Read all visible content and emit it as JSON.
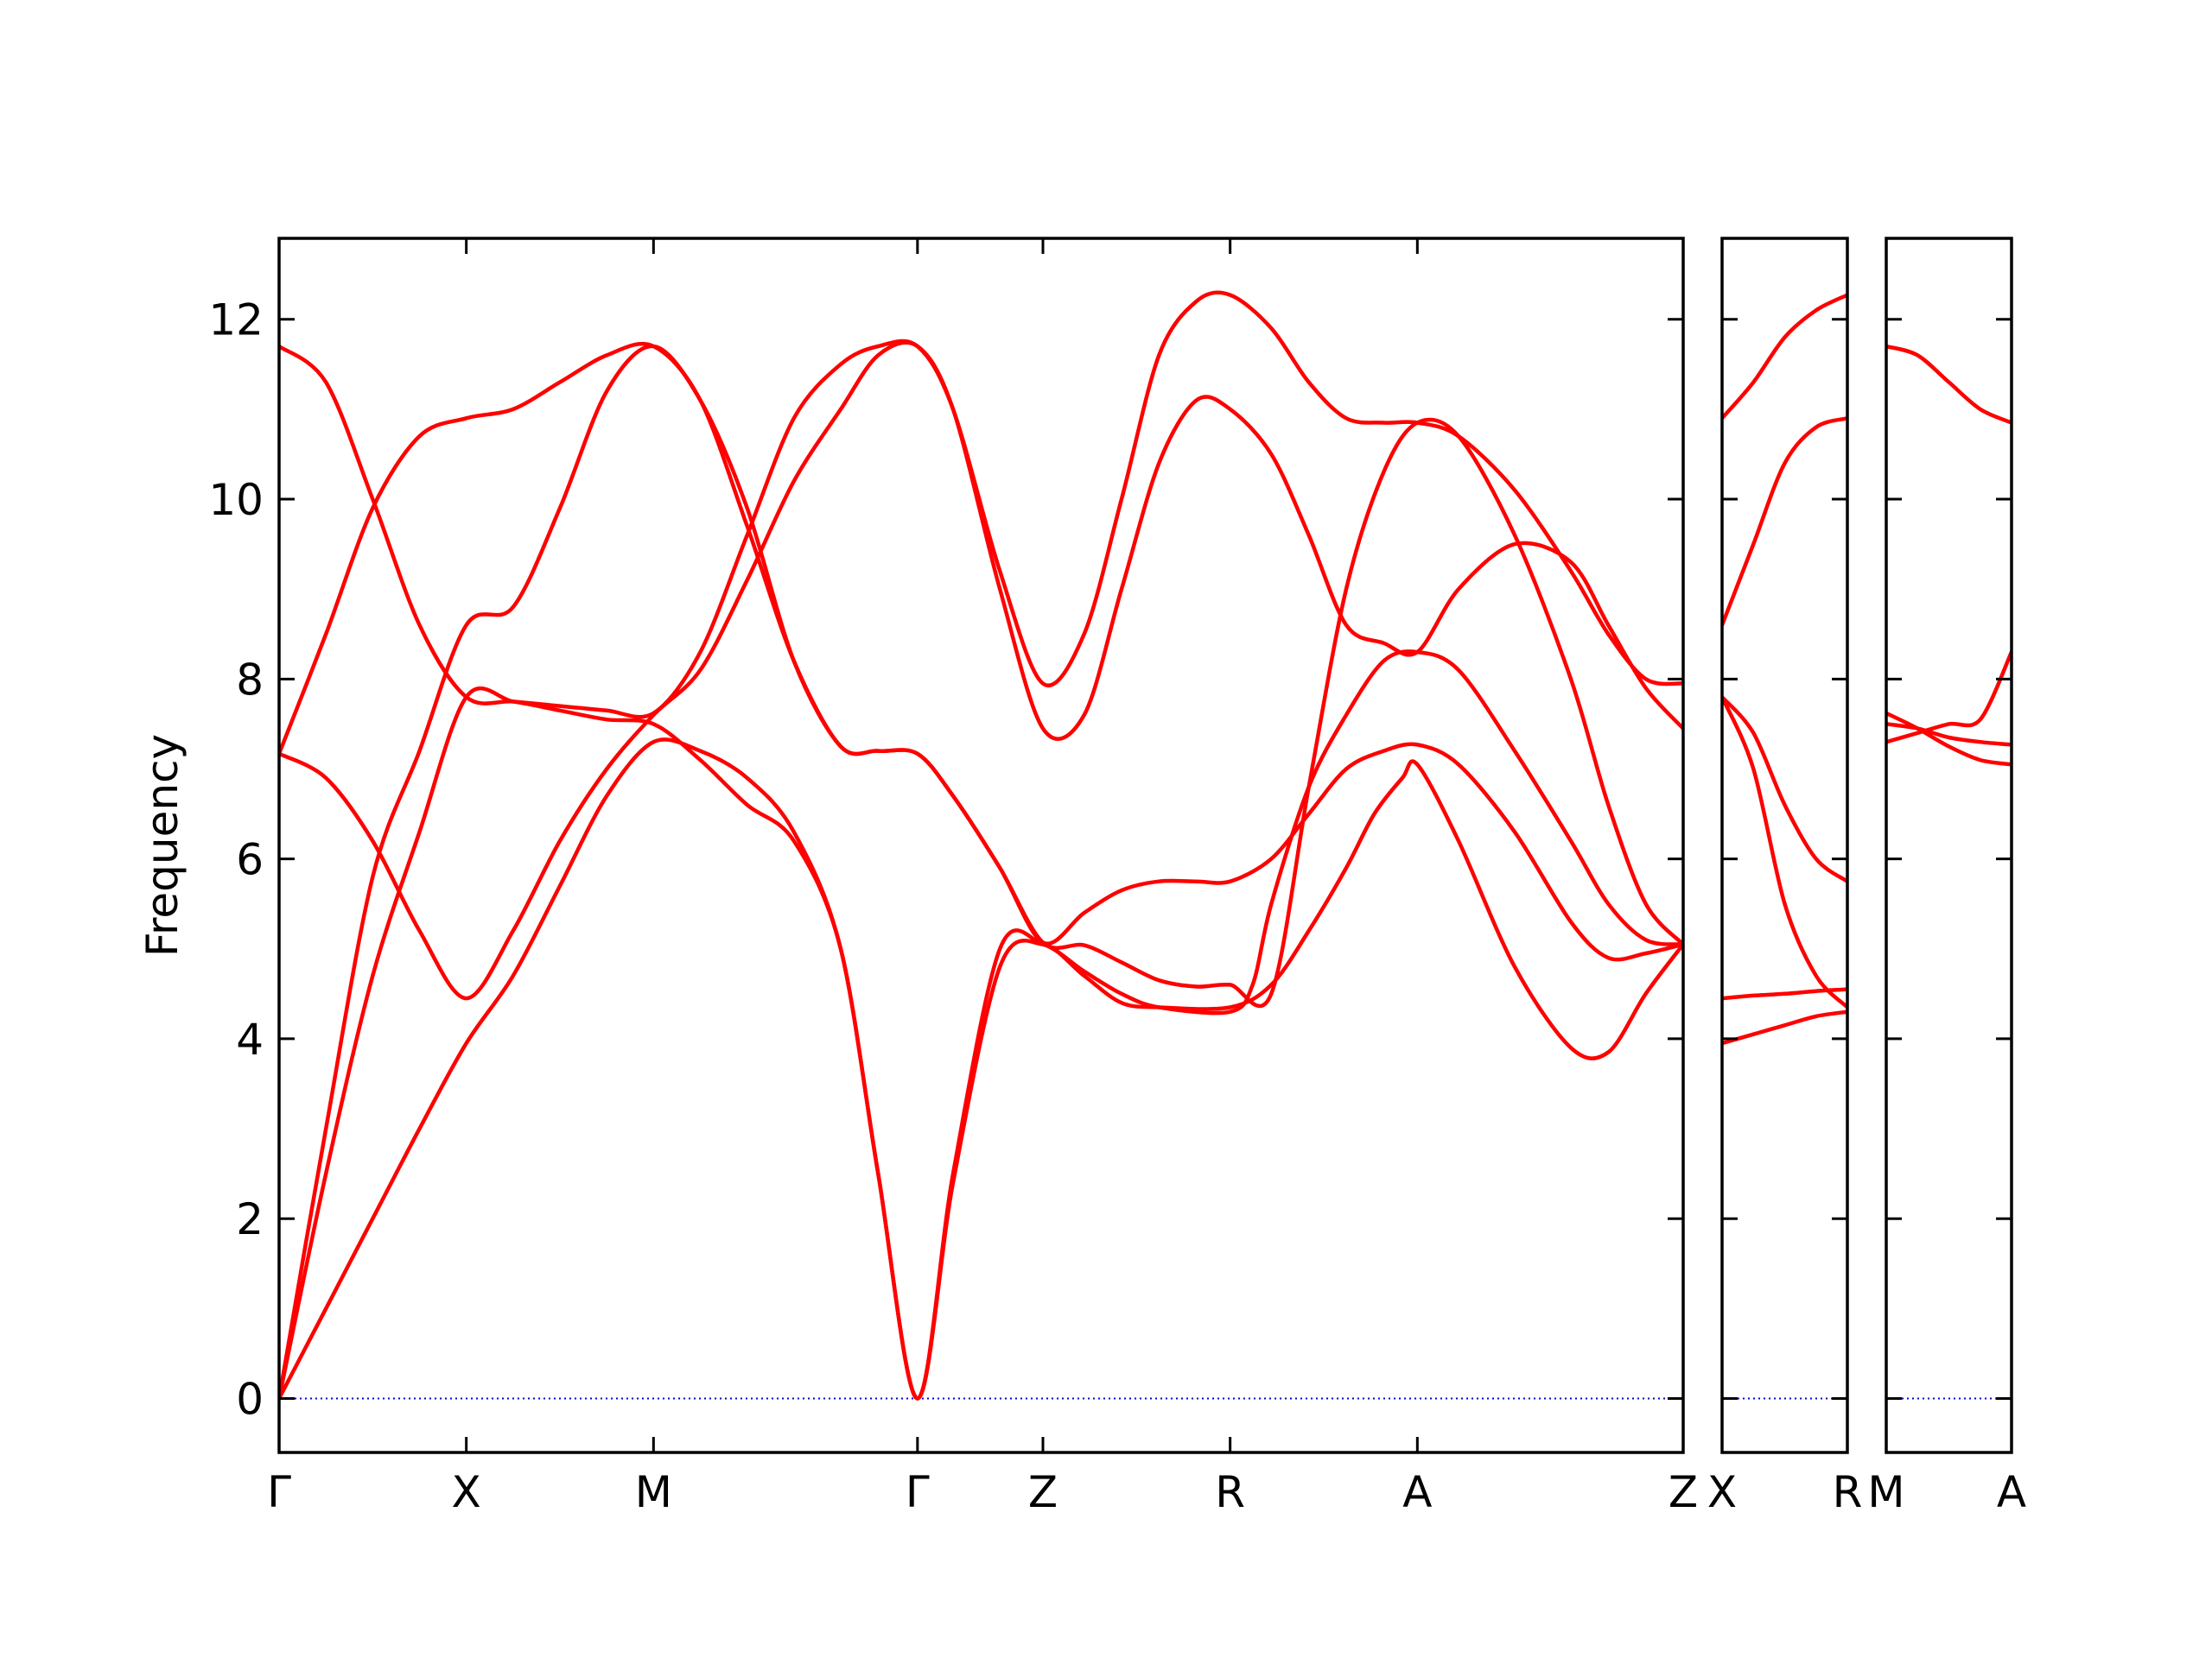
{
  "chart_data": {
    "type": "line",
    "title": "",
    "xlabel": "",
    "ylabel": "Frequency",
    "ylim": [
      -0.6,
      12.9
    ],
    "yticks": [
      0,
      2,
      4,
      6,
      8,
      10,
      12
    ],
    "grid": false,
    "legend": "none",
    "colors": {
      "band": "#ff0000",
      "zero_line": "#0000cc",
      "axes": "#000000"
    },
    "segments": [
      {
        "path": [
          "Γ",
          "X",
          "M",
          "Γ",
          "Z",
          "R",
          "A",
          "Z"
        ],
        "x": [
          0,
          1,
          2,
          3.41,
          4.08,
          5.08,
          6.08,
          7.5
        ],
        "bands": [
          {
            "x": [
              0,
              0.25,
              0.5,
              0.75,
              1,
              1.25,
              1.5,
              1.75,
              2,
              2.25,
              2.5,
              2.75,
              3,
              3.2,
              3.41,
              3.6,
              3.85,
              4.08,
              4.3,
              4.5,
              4.7,
              5.08,
              5.3,
              5.5,
              5.7,
              5.85,
              6.0,
              6.08,
              6.3,
              6.6,
              6.9,
              7.1,
              7.3,
              7.5
            ],
            "y": [
              0,
              1.0,
              2.0,
              3.0,
              3.95,
              4.7,
              5.7,
              6.7,
              7.3,
              7.2,
              6.9,
              6.3,
              5.0,
              2.5,
              0,
              2.4,
              4.8,
              5.05,
              4.7,
              4.4,
              4.35,
              4.35,
              4.6,
              5.2,
              5.9,
              6.5,
              6.9,
              7.05,
              6.2,
              4.8,
              3.9,
              3.85,
              4.5,
              5.05
            ]
          },
          {
            "x": [
              0,
              0.25,
              0.5,
              0.75,
              1,
              1.25,
              1.5,
              1.75,
              2,
              2.25,
              2.5,
              2.75,
              3,
              3.2,
              3.41,
              3.6,
              3.85,
              4.08,
              4.3,
              4.5,
              4.7,
              5.08,
              5.2,
              5.3,
              5.5,
              5.7,
              5.9,
              6.08,
              6.3,
              6.6,
              6.9,
              7.1,
              7.3,
              7.5
            ],
            "y": [
              0,
              2.5,
              4.7,
              6.3,
              7.8,
              7.75,
              7.65,
              7.55,
              7.5,
              7.1,
              6.6,
              6.2,
              5.0,
              2.5,
              0,
              2.5,
              5.0,
              5.05,
              4.75,
              4.5,
              4.35,
              4.3,
              4.6,
              5.5,
              6.8,
              7.6,
              8.2,
              8.3,
              8.1,
              7.2,
              6.2,
              5.5,
              5.1,
              5.05
            ]
          },
          {
            "x": [
              0,
              0.25,
              0.5,
              0.75,
              1,
              1.25,
              1.5,
              1.75,
              2,
              2.25,
              2.5,
              2.75,
              3,
              3.2,
              3.41,
              3.6,
              3.85,
              4.08,
              4.3,
              4.5,
              4.7,
              4.9,
              5.08,
              5.3,
              5.5,
              5.7,
              5.9,
              6.08,
              6.3,
              6.6,
              6.9,
              7.1,
              7.3,
              7.5
            ],
            "y": [
              0,
              3.0,
              5.8,
              7.2,
              8.6,
              8.8,
              9.9,
              11.2,
              11.7,
              11.1,
              9.9,
              8.2,
              7.25,
              7.2,
              7.17,
              6.7,
              5.9,
              5.07,
              5.04,
              4.85,
              4.65,
              4.58,
              4.6,
              4.5,
              6.8,
              9.0,
              10.3,
              10.85,
              10.7,
              9.6,
              8.0,
              6.6,
              5.5,
              5.05
            ]
          },
          {
            "x": [
              0,
              0.25,
              0.5,
              0.75,
              1,
              1.25,
              1.5,
              1.75,
              2,
              2.25,
              2.5,
              2.75,
              3,
              3.2,
              3.41,
              3.6,
              3.85,
              4.08,
              4.3,
              4.5,
              4.7,
              4.9,
              5.08,
              5.3,
              5.5,
              5.7,
              5.9,
              6.08,
              6.3,
              6.6,
              6.9,
              7.1,
              7.3,
              7.5
            ],
            "y": [
              7.17,
              6.9,
              6.2,
              5.2,
              4.45,
              5.2,
              6.2,
              7.0,
              7.6,
              8.1,
              9.1,
              10.2,
              11.0,
              11.6,
              11.7,
              11.0,
              9.0,
              7.45,
              7.6,
              9.0,
              10.4,
              11.1,
              11.0,
              10.5,
              9.6,
              8.6,
              8.4,
              8.3,
              9.0,
              9.5,
              9.3,
              8.6,
              7.9,
              7.45
            ]
          },
          {
            "x": [
              0,
              0.25,
              0.5,
              0.75,
              1,
              1.25,
              1.5,
              1.75,
              2,
              2.25,
              2.5,
              2.75,
              3,
              3.2,
              3.41,
              3.6,
              3.85,
              4.08,
              4.3,
              4.5,
              4.7,
              4.9,
              5.08,
              5.3,
              5.5,
              5.7,
              5.9,
              6.08,
              6.3,
              6.6,
              6.9,
              7.1,
              7.3,
              7.5
            ],
            "y": [
              7.17,
              8.5,
              9.9,
              10.7,
              10.9,
              11.0,
              11.3,
              11.6,
              11.7,
              11.1,
              9.7,
              8.2,
              7.25,
              7.2,
              7.17,
              6.7,
              5.9,
              5.07,
              5.4,
              5.65,
              5.75,
              5.75,
              5.75,
              6.0,
              6.5,
              7.0,
              7.2,
              7.27,
              7.05,
              6.3,
              5.3,
              4.9,
              4.95,
              5.05
            ]
          },
          {
            "x": [
              0,
              0.25,
              0.5,
              0.75,
              1,
              1.25,
              1.5,
              1.75,
              2,
              2.25,
              2.5,
              2.75,
              3,
              3.2,
              3.41,
              3.6,
              3.85,
              4.08,
              4.3,
              4.5,
              4.7,
              4.9,
              5.08,
              5.3,
              5.5,
              5.7,
              5.9,
              6.08,
              6.3,
              6.6,
              6.9,
              7.1,
              7.3,
              7.5
            ],
            "y": [
              11.7,
              11.3,
              10.0,
              8.6,
              7.8,
              7.75,
              7.7,
              7.65,
              7.62,
              8.3,
              9.6,
              10.9,
              11.5,
              11.7,
              11.7,
              11.0,
              9.2,
              7.95,
              8.5,
              10.0,
              11.6,
              12.2,
              12.27,
              11.9,
              11.3,
              10.9,
              10.85,
              10.85,
              10.7,
              10.1,
              9.2,
              8.5,
              8.0,
              7.95
            ]
          }
        ]
      },
      {
        "path": [
          "X",
          "R"
        ],
        "x": [
          0,
          1
        ],
        "bands": [
          {
            "x": [
              0,
              0.25,
              0.5,
              0.75,
              1
            ],
            "y": [
              3.95,
              4.05,
              4.15,
              4.25,
              4.3
            ]
          },
          {
            "x": [
              0,
              0.25,
              0.5,
              0.75,
              1
            ],
            "y": [
              4.45,
              4.48,
              4.5,
              4.53,
              4.55
            ]
          },
          {
            "x": [
              0,
              0.25,
              0.5,
              0.75,
              1
            ],
            "y": [
              7.8,
              7.0,
              5.5,
              4.7,
              4.35
            ]
          },
          {
            "x": [
              0,
              0.25,
              0.5,
              0.75,
              1
            ],
            "y": [
              7.8,
              7.4,
              6.6,
              6.0,
              5.75
            ]
          },
          {
            "x": [
              0,
              0.25,
              0.5,
              0.75,
              1
            ],
            "y": [
              8.6,
              9.5,
              10.4,
              10.8,
              10.9
            ]
          },
          {
            "x": [
              0,
              0.25,
              0.5,
              0.75,
              1
            ],
            "y": [
              10.9,
              11.3,
              11.8,
              12.1,
              12.27
            ]
          }
        ]
      },
      {
        "path": [
          "M",
          "A"
        ],
        "x": [
          0,
          1
        ],
        "bands": [
          {
            "x": [
              0,
              0.25,
              0.5,
              0.75,
              1
            ],
            "y": [
              7.3,
              7.4,
              7.5,
              7.55,
              8.3
            ]
          },
          {
            "x": [
              0,
              0.25,
              0.5,
              0.75,
              1
            ],
            "y": [
              7.5,
              7.45,
              7.35,
              7.3,
              7.27
            ]
          },
          {
            "x": [
              0,
              0.25,
              0.5,
              0.75,
              1
            ],
            "y": [
              7.62,
              7.45,
              7.25,
              7.1,
              7.05
            ]
          },
          {
            "x": [
              0,
              0.25,
              0.5,
              0.75,
              1
            ],
            "y": [
              11.7,
              11.6,
              11.3,
              11.0,
              10.85
            ]
          }
        ]
      }
    ]
  }
}
